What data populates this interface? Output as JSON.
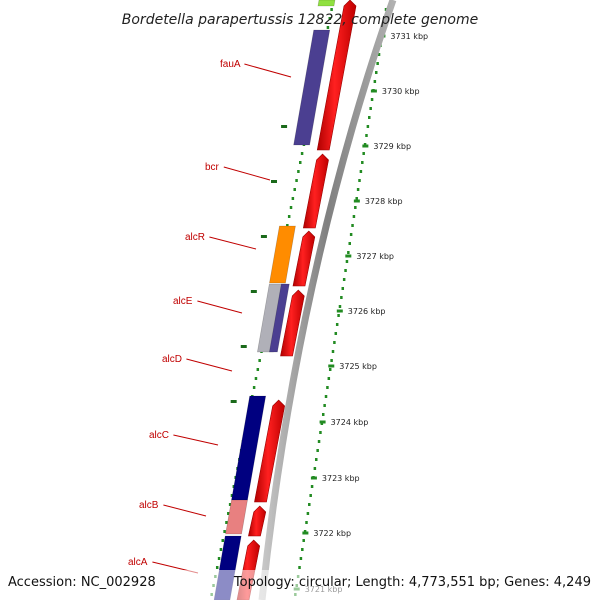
{
  "title": "Bordetella parapertussis 12822, complete genome",
  "footer": {
    "accession": "Accession: NC_002928",
    "topology": "Topology: circular; Length: 4,773,551 bp; Genes: 4,249"
  },
  "colors": {
    "cds": "#ff0000",
    "dark_blue": "#000080",
    "slate_blue": "#4b3f91",
    "orange": "#ff8c00",
    "pink": "#e88080",
    "grey": "#b0b0b8",
    "green_top": "#90e040",
    "label": "#c00000",
    "tick": "#228b22",
    "backbone": "#909090"
  },
  "genes": [
    {
      "name": "fauA"
    },
    {
      "name": "bcr"
    },
    {
      "name": "alcR"
    },
    {
      "name": "alcE"
    },
    {
      "name": "alcD"
    },
    {
      "name": "alcC"
    },
    {
      "name": "alcB"
    },
    {
      "name": "alcA"
    }
  ],
  "kbp_ticks": [
    {
      "label": "3731 kbp"
    },
    {
      "label": "3730 kbp"
    },
    {
      "label": "3729 kbp"
    },
    {
      "label": "3728 kbp"
    },
    {
      "label": "3727 kbp"
    },
    {
      "label": "3726 kbp"
    },
    {
      "label": "3725 kbp"
    },
    {
      "label": "3724 kbp"
    },
    {
      "label": "3723 kbp"
    },
    {
      "label": "3722 kbp"
    },
    {
      "label": "3721 kbp"
    }
  ]
}
